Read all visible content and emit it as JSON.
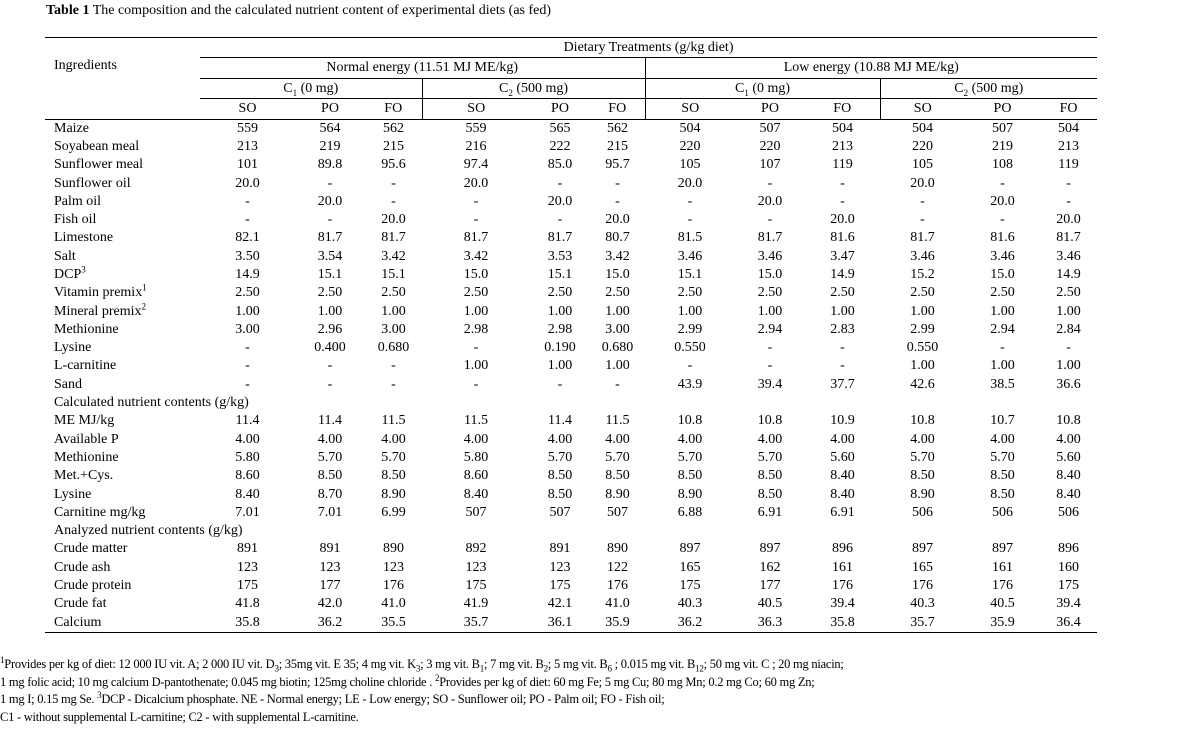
{
  "title": {
    "label": "Table 1",
    "text": " The composition and the calculated nutrient content of experimental diets (as fed)"
  },
  "header": {
    "ingredients": "Ingredients",
    "treatments": "Dietary Treatments (g/kg diet)",
    "energy": [
      "Normal energy (11.51 MJ ME/kg)",
      "Low energy  (10.88 MJ ME/kg)"
    ],
    "carnitine": [
      {
        "c": "C",
        "sub": "1",
        "rest": " (0 mg)"
      },
      {
        "c": "C",
        "sub": "2",
        "rest": " (500 mg)"
      },
      {
        "c": "C",
        "sub": "1",
        "rest": " (0 mg)"
      },
      {
        "c": "C",
        "sub": "2",
        "rest": " (500 mg)"
      }
    ],
    "oils": [
      "SO",
      "PO",
      "FO",
      "SO",
      "PO",
      "FO",
      "SO",
      "PO",
      "FO",
      "SO",
      "PO",
      "FO"
    ]
  },
  "rows": [
    {
      "name": "Maize",
      "v": [
        "559",
        "564",
        "562",
        "559",
        "565",
        "562",
        "504",
        "507",
        "504",
        "504",
        "507",
        "504"
      ]
    },
    {
      "name": "Soyabean meal",
      "v": [
        "213",
        "219",
        "215",
        "216",
        "222",
        "215",
        "220",
        "220",
        "213",
        "220",
        "219",
        "213"
      ]
    },
    {
      "name": "Sunflower meal",
      "v": [
        "101",
        "89.8",
        "95.6",
        "97.4",
        "85.0",
        "95.7",
        "105",
        "107",
        "119",
        "105",
        "108",
        "119"
      ]
    },
    {
      "name": "Sunflower oil",
      "v": [
        "20.0",
        "-",
        "-",
        "20.0",
        "-",
        "-",
        "20.0",
        "-",
        "-",
        "20.0",
        "-",
        "-"
      ]
    },
    {
      "name": "Palm oil",
      "v": [
        "-",
        "20.0",
        "-",
        "-",
        "20.0",
        "-",
        "-",
        "20.0",
        "-",
        "-",
        "20.0",
        "-"
      ]
    },
    {
      "name": "Fish oil",
      "v": [
        "-",
        "-",
        "20.0",
        "-",
        "-",
        "20.0",
        "-",
        "-",
        "20.0",
        "-",
        "-",
        "20.0"
      ]
    },
    {
      "name": "Limestone",
      "v": [
        "82.1",
        "81.7",
        "81.7",
        "81.7",
        "81.7",
        "80.7",
        "81.5",
        "81.7",
        "81.6",
        "81.7",
        "81.6",
        "81.7"
      ]
    },
    {
      "name": "Salt",
      "v": [
        "3.50",
        "3.54",
        "3.42",
        "3.42",
        "3.53",
        "3.42",
        "3.46",
        "3.46",
        "3.47",
        "3.46",
        "3.46",
        "3.46"
      ]
    },
    {
      "name": "DCP",
      "sup": "3",
      "v": [
        "14.9",
        "15.1",
        "15.1",
        "15.0",
        "15.1",
        "15.0",
        "15.1",
        "15.0",
        "14.9",
        "15.2",
        "15.0",
        "14.9"
      ]
    },
    {
      "name": "Vitamin premix",
      "sup": "1",
      "v": [
        "2.50",
        "2.50",
        "2.50",
        "2.50",
        "2.50",
        "2.50",
        "2.50",
        "2.50",
        "2.50",
        "2.50",
        "2.50",
        "2.50"
      ]
    },
    {
      "name": "Mineral premix",
      "sup": "2",
      "v": [
        "1.00",
        "1.00",
        "1.00",
        "1.00",
        "1.00",
        "1.00",
        "1.00",
        "1.00",
        "1.00",
        "1.00",
        "1.00",
        "1.00"
      ]
    },
    {
      "name": "Methionine",
      "v": [
        "3.00",
        "2.96",
        "3.00",
        "2.98",
        "2.98",
        "3.00",
        "2.99",
        "2.94",
        "2.83",
        "2.99",
        "2.94",
        "2.84"
      ]
    },
    {
      "name": "Lysine",
      "v": [
        "-",
        "0.400",
        "0.680",
        "-",
        "0.190",
        "0.680",
        "0.550",
        "-",
        "-",
        "0.550",
        "-",
        "-"
      ]
    },
    {
      "name": "L-carnitine",
      "v": [
        "-",
        "-",
        "-",
        "1.00",
        "1.00",
        "1.00",
        "-",
        "-",
        "-",
        "1.00",
        "1.00",
        "1.00"
      ]
    },
    {
      "name": "Sand",
      "v": [
        "-",
        "-",
        "-",
        "-",
        "-",
        "-",
        "43.9",
        "39.4",
        "37.7",
        "42.6",
        "38.5",
        "36.6"
      ]
    },
    {
      "section": "Calculated nutrient contents (g/kg)"
    },
    {
      "name": "ME  MJ/kg",
      "v": [
        "11.4",
        "11.4",
        "11.5",
        "11.5",
        "11.4",
        "11.5",
        "10.8",
        "10.8",
        "10.9",
        "10.8",
        "10.7",
        "10.8"
      ]
    },
    {
      "name": "Available P",
      "v": [
        "4.00",
        "4.00",
        "4.00",
        "4.00",
        "4.00",
        "4.00",
        "4.00",
        "4.00",
        "4.00",
        "4.00",
        "4.00",
        "4.00"
      ]
    },
    {
      "name": "Methionine",
      "v": [
        "5.80",
        "5.70",
        "5.70",
        "5.80",
        "5.70",
        "5.70",
        "5.70",
        "5.70",
        "5.60",
        "5.70",
        "5.70",
        "5.60"
      ]
    },
    {
      "name": "Met.+Cys.",
      "v": [
        "8.60",
        "8.50",
        "8.50",
        "8.60",
        "8.50",
        "8.50",
        "8.50",
        "8.50",
        "8.40",
        "8.50",
        "8.50",
        "8.40"
      ]
    },
    {
      "name": "Lysine",
      "v": [
        "8.40",
        "8.70",
        "8.90",
        "8.40",
        "8.50",
        "8.90",
        "8.90",
        "8.50",
        "8.40",
        "8.90",
        "8.50",
        "8.40"
      ]
    },
    {
      "name": "Carnitine mg/kg",
      "v": [
        "7.01",
        "7.01",
        "6.99",
        "507",
        "507",
        "507",
        "6.88",
        "6.91",
        "6.91",
        "506",
        "506",
        "506"
      ]
    },
    {
      "section": "Analyzed nutrient contents (g/kg)"
    },
    {
      "name": "Crude matter",
      "v": [
        "891",
        "891",
        "890",
        "892",
        "891",
        "890",
        "897",
        "897",
        "896",
        "897",
        "897",
        "896"
      ]
    },
    {
      "name": "Crude ash",
      "v": [
        "123",
        "123",
        "123",
        "123",
        "123",
        "122",
        "165",
        "162",
        "161",
        "165",
        "161",
        "160"
      ]
    },
    {
      "name": "Crude protein",
      "v": [
        "175",
        "177",
        "176",
        "175",
        "175",
        "176",
        "175",
        "177",
        "176",
        "176",
        "176",
        "175"
      ]
    },
    {
      "name": "Crude fat",
      "v": [
        "41.8",
        "42.0",
        "41.0",
        "41.9",
        "42.1",
        "41.0",
        "40.3",
        "40.5",
        "39.4",
        "40.3",
        "40.5",
        "39.4"
      ]
    },
    {
      "name": "Calcium",
      "v": [
        "35.8",
        "36.2",
        "35.5",
        "35.7",
        "36.1",
        "35.9",
        "36.2",
        "36.3",
        "35.8",
        "35.7",
        "35.9",
        "36.4"
      ]
    }
  ],
  "footnotes": [
    [
      {
        "sup": "1"
      },
      {
        "t": "Provides per kg of diet: 12 000 IU vit. A;  2 000 IU vit. D"
      },
      {
        "sub": "3"
      },
      {
        "t": "; 35mg vit. E 35; 4 mg vit. K"
      },
      {
        "sub": "3"
      },
      {
        "t": "; 3 mg vit. B"
      },
      {
        "sub": "1"
      },
      {
        "t": "; 7 mg vit. B"
      },
      {
        "sub": "2"
      },
      {
        "t": "; 5 mg vit. B"
      },
      {
        "sub": "6"
      },
      {
        "t": " ; 0.015 mg vit. B"
      },
      {
        "sub": "12"
      },
      {
        "t": "; 50 mg vit. C ; 20 mg niacin;"
      }
    ],
    [
      {
        "t": "1 mg folic acid; 10 mg calcium D-pantothenate; 0.045 mg biotin; 125mg choline chloride . "
      },
      {
        "sup": "2"
      },
      {
        "t": "Provides per kg of diet:  60 mg Fe; 5 mg Cu; 80 mg Mn; 0.2 mg Co; 60 mg Zn;"
      }
    ],
    [
      {
        "t": "1 mg I; 0.15 mg Se.  "
      },
      {
        "sup": "3"
      },
      {
        "t": "DCP - Dicalcium phosphate.  NE - Normal energy; LE - Low energy; SO - Sunflower oil; PO - Palm oil; FO - Fish oil;"
      }
    ],
    [
      {
        "t": "C1 - without supplemental L-carnitine; C2 - with supplemental L-carnitine."
      }
    ]
  ]
}
